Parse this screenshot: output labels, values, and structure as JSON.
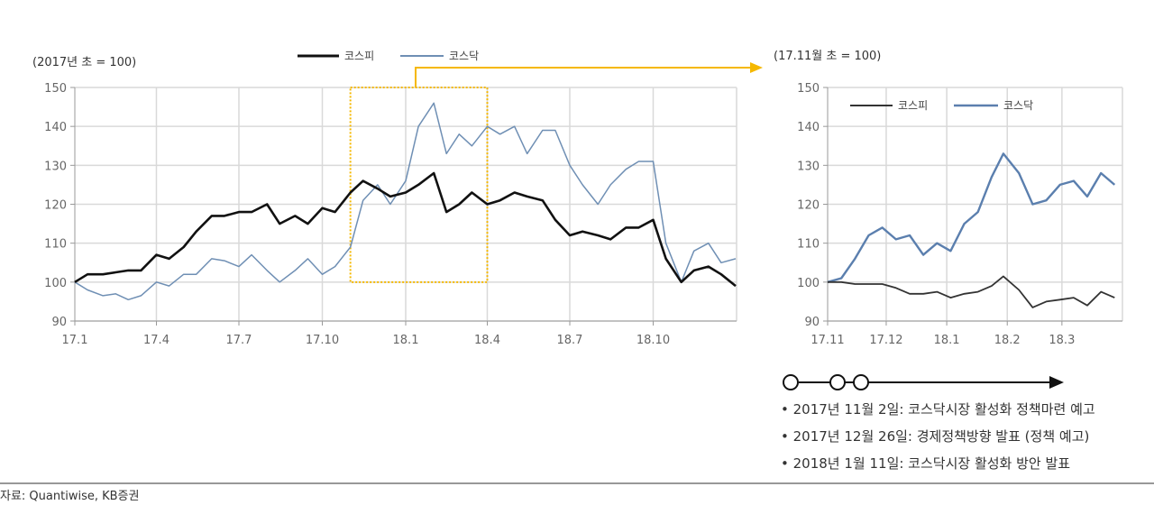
{
  "colors": {
    "kospi": "#111111",
    "kosdaq": "#6f8fb4",
    "highlight": "#f5b800",
    "grid": "#d9d9d9"
  },
  "chart_data": [
    {
      "type": "line",
      "unit_label": "(2017년 초 = 100)",
      "legend": [
        "코스피",
        "코스닥"
      ],
      "legend_placement": "top",
      "xlim": [
        "2017-01-01",
        "2019-01-01"
      ],
      "ylim": [
        90,
        150
      ],
      "yticks": [
        90,
        100,
        110,
        120,
        130,
        140,
        150
      ],
      "xticks": [
        {
          "label": "17.1",
          "date": "2017-01-01"
        },
        {
          "label": "17.4",
          "date": "2017-04-01"
        },
        {
          "label": "17.7",
          "date": "2017-07-01"
        },
        {
          "label": "17.10",
          "date": "2017-10-01"
        },
        {
          "label": "18.1",
          "date": "2018-01-01"
        },
        {
          "label": "18.4",
          "date": "2018-04-01"
        },
        {
          "label": "18.7",
          "date": "2018-07-01"
        },
        {
          "label": "18.10",
          "date": "2018-10-01"
        }
      ],
      "grid": true,
      "highlight_box": {
        "x": [
          "2017-11-01",
          "2018-04-01"
        ],
        "y": [
          100,
          150
        ]
      },
      "x": [
        "2017-01-01",
        "2017-01-15",
        "2017-02-01",
        "2017-02-15",
        "2017-03-01",
        "2017-03-15",
        "2017-04-01",
        "2017-04-15",
        "2017-05-01",
        "2017-05-15",
        "2017-06-01",
        "2017-06-15",
        "2017-07-01",
        "2017-07-15",
        "2017-08-01",
        "2017-08-15",
        "2017-09-01",
        "2017-09-15",
        "2017-10-01",
        "2017-10-15",
        "2017-11-01",
        "2017-11-15",
        "2017-12-01",
        "2017-12-15",
        "2018-01-01",
        "2018-01-15",
        "2018-02-01",
        "2018-02-15",
        "2018-03-01",
        "2018-03-15",
        "2018-04-01",
        "2018-04-15",
        "2018-05-01",
        "2018-05-15",
        "2018-06-01",
        "2018-06-15",
        "2018-07-01",
        "2018-07-15",
        "2018-08-01",
        "2018-08-15",
        "2018-09-01",
        "2018-09-15",
        "2018-10-01",
        "2018-10-15",
        "2018-11-01",
        "2018-11-15",
        "2018-12-01",
        "2018-12-15",
        "2018-12-31"
      ],
      "series": [
        {
          "name": "코스피",
          "values": [
            100,
            102,
            102,
            102.5,
            103,
            103,
            107,
            106,
            109,
            113,
            117,
            117,
            118,
            118,
            120,
            115,
            117,
            115,
            119,
            118,
            123,
            126,
            124,
            122,
            123,
            125,
            128,
            118,
            120,
            123,
            120,
            121,
            123,
            122,
            121,
            116,
            112,
            113,
            112,
            111,
            114,
            114,
            116,
            106,
            100,
            103,
            104,
            102,
            99
          ]
        },
        {
          "name": "코스닥",
          "values": [
            100,
            98,
            96.5,
            97,
            95.5,
            96.5,
            100,
            99,
            102,
            102,
            106,
            105.5,
            104,
            107,
            103,
            100,
            103,
            106,
            102,
            104,
            109,
            121,
            125,
            120,
            126,
            140,
            146,
            133,
            138,
            135,
            140,
            138,
            140,
            133,
            139,
            139,
            130,
            125,
            120,
            125,
            129,
            131,
            131,
            110,
            100,
            108,
            110,
            105,
            106
          ]
        }
      ]
    },
    {
      "type": "line",
      "unit_label": "(17.11월 초 = 100)",
      "legend": [
        "코스피",
        "코스닥"
      ],
      "legend_placement": "top-left",
      "xlim": [
        "2017-11-01",
        "2018-04-01"
      ],
      "ylim": [
        90,
        150
      ],
      "yticks": [
        90,
        100,
        110,
        120,
        130,
        140,
        150
      ],
      "xticks": [
        {
          "label": "17.11",
          "date": "2017-11-01"
        },
        {
          "label": "17.12",
          "date": "2017-12-01"
        },
        {
          "label": "18.1",
          "date": "2018-01-01"
        },
        {
          "label": "18.2",
          "date": "2018-02-01"
        },
        {
          "label": "18.3",
          "date": "2018-03-01"
        }
      ],
      "grid": true,
      "x": [
        "2017-11-01",
        "2017-11-08",
        "2017-11-15",
        "2017-11-22",
        "2017-11-29",
        "2017-12-06",
        "2017-12-13",
        "2017-12-20",
        "2017-12-27",
        "2018-01-03",
        "2018-01-10",
        "2018-01-17",
        "2018-01-24",
        "2018-01-30",
        "2018-02-07",
        "2018-02-14",
        "2018-02-21",
        "2018-02-28",
        "2018-03-07",
        "2018-03-14",
        "2018-03-21",
        "2018-03-28"
      ],
      "series": [
        {
          "name": "코스피",
          "values": [
            100,
            100,
            99.5,
            99.5,
            99.5,
            98.5,
            97,
            97,
            97.5,
            96,
            97,
            97.5,
            99,
            101.5,
            98,
            93.5,
            95,
            95.5,
            96,
            94,
            97.5,
            96
          ]
        },
        {
          "name": "코스닥",
          "values": [
            100,
            101,
            106,
            112,
            114,
            111,
            112,
            107,
            110,
            108,
            115,
            118,
            127,
            133,
            128,
            120,
            121,
            125,
            126,
            122,
            128,
            125
          ]
        }
      ]
    }
  ],
  "timeline": {
    "events": [
      "2017년 11월 2일: 코스닥시장 활성화 정책마련 예고",
      "2017년 12월 26일: 경제정책방향 발표 (정책 예고)",
      "2018년 1월 11일: 코스닥시장 활성화 방안 발표"
    ]
  },
  "source": "자료: Quantiwise, KB증권"
}
